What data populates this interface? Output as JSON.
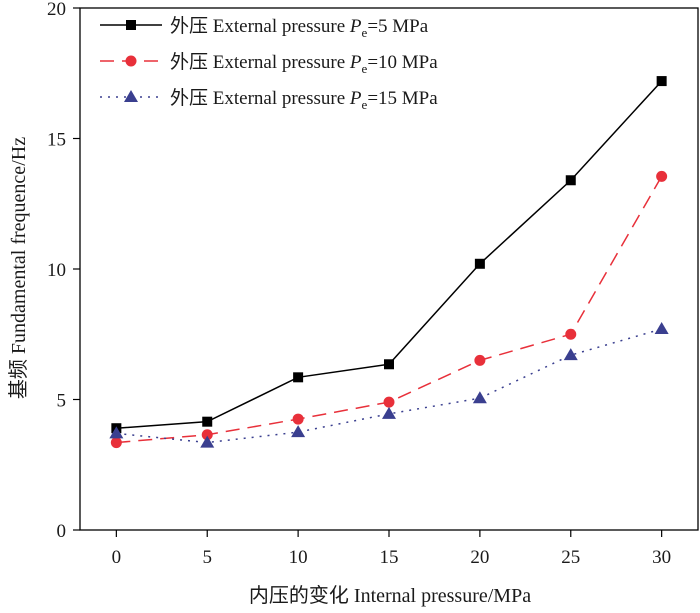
{
  "chart_data": {
    "type": "line",
    "xlabel": "内压的变化 Internal pressure/MPa",
    "ylabel": "基频 Fundamental frequence/Hz",
    "x": [
      0,
      5,
      10,
      15,
      20,
      25,
      30
    ],
    "xticks": [
      "0",
      "5",
      "10",
      "15",
      "20",
      "25",
      "30"
    ],
    "yticks": [
      "0",
      "5",
      "10",
      "15",
      "20"
    ],
    "xlim": [
      -2,
      32
    ],
    "ylim": [
      0,
      20
    ],
    "grid": false,
    "legend_position": "top-left",
    "series": [
      {
        "name": "外压 External pressure Pe=5 MPa",
        "legend_prefix": "外压 External pressure ",
        "legend_symbol": "P",
        "legend_sub": "e",
        "legend_suffix": "=5 MPa",
        "values": [
          3.9,
          4.15,
          5.85,
          6.35,
          10.2,
          13.4,
          17.2
        ],
        "color": "#000000",
        "marker": "square",
        "line_style": "solid"
      },
      {
        "name": "外压 External pressure Pe=10 MPa",
        "legend_prefix": "外压 External pressure ",
        "legend_symbol": "P",
        "legend_sub": "e",
        "legend_suffix": "=10 MPa",
        "values": [
          3.35,
          3.65,
          4.25,
          4.9,
          6.5,
          7.5,
          13.55
        ],
        "color": "#e8303a",
        "marker": "circle",
        "line_style": "dashed"
      },
      {
        "name": "外压 External pressure Pe=15 MPa",
        "legend_prefix": "外压 External pressure ",
        "legend_symbol": "P",
        "legend_sub": "e",
        "legend_suffix": "=15 MPa",
        "values": [
          3.7,
          3.35,
          3.75,
          4.45,
          5.05,
          6.7,
          7.7
        ],
        "color": "#3a3f8f",
        "marker": "triangle",
        "line_style": "dotted"
      }
    ]
  }
}
